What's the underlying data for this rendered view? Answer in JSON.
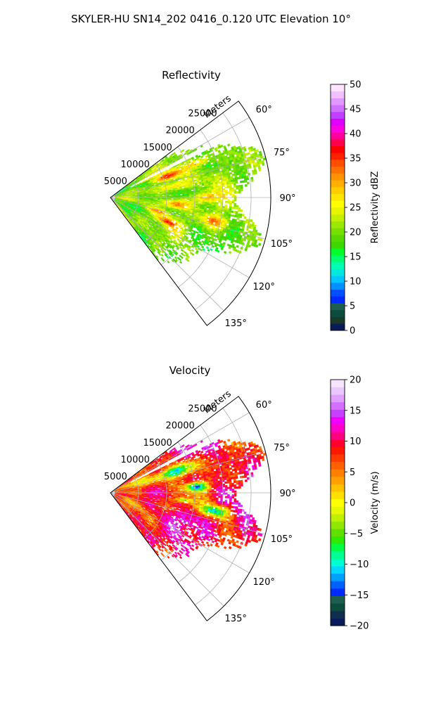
{
  "figure": {
    "suptitle": "SKYLER-HU  SN14_202  0416_0.120 UTC Elevation 10°"
  },
  "chart_data": [
    {
      "type": "heatmap",
      "subtype": "polar-sector (radar PPI)",
      "title": "Reflectivity",
      "radial_axis_label": "Meters",
      "radial_ticks": [
        "5000",
        "10000",
        "15000",
        "20000",
        "25000"
      ],
      "radial_ticks_values": [
        5000,
        10000,
        15000,
        20000,
        25000
      ],
      "radial_range": [
        0,
        28500
      ],
      "angle_ticks": [
        "60°",
        "75°",
        "90°",
        "105°",
        "120°",
        "135°"
      ],
      "angle_ticks_values": [
        60,
        75,
        90,
        105,
        120,
        135
      ],
      "angle_range": [
        53,
        143
      ],
      "grid": true,
      "colorbar": {
        "label": "Reflectivity dBZ",
        "range": [
          0,
          50
        ],
        "ticks": [
          "0",
          "5",
          "10",
          "15",
          "20",
          "25",
          "30",
          "35",
          "40",
          "45",
          "50"
        ],
        "tick_values": [
          0,
          5,
          10,
          15,
          20,
          25,
          30,
          35,
          40,
          45,
          50
        ],
        "colormap": "NWS reflectivity"
      },
      "field_summary": "Mostly 15–25 dBZ returns (green/yellow) across the sector with embedded 30–40 dBZ cores (orange/red), a narrow blocked beam near azimuth 62–65°"
    },
    {
      "type": "heatmap",
      "subtype": "polar-sector (radar PPI)",
      "title": "Velocity",
      "radial_axis_label": "Meters",
      "radial_ticks": [
        "5000",
        "10000",
        "15000",
        "20000",
        "25000"
      ],
      "radial_ticks_values": [
        5000,
        10000,
        15000,
        20000,
        25000
      ],
      "radial_range": [
        0,
        28500
      ],
      "angle_ticks": [
        "60°",
        "75°",
        "90°",
        "105°",
        "120°",
        "135°"
      ],
      "angle_ticks_values": [
        60,
        75,
        90,
        105,
        120,
        135
      ],
      "angle_range": [
        53,
        143
      ],
      "grid": true,
      "colorbar": {
        "label": "Velocity (m/s)",
        "range": [
          -20,
          20
        ],
        "ticks": [
          "−20",
          "−15",
          "−10",
          "−5",
          "0",
          "5",
          "10",
          "15",
          "20"
        ],
        "tick_values": [
          -20,
          -15,
          -10,
          -5,
          0,
          5,
          10,
          15,
          20
        ],
        "colormap": "NWS velocity"
      },
      "field_summary": "Predominantly outbound 5–15 m/s (orange/red/magenta) with pockets of inbound −10 to −12 m/s (cyan) near 15 km range at azimuth 70–100°"
    }
  ]
}
